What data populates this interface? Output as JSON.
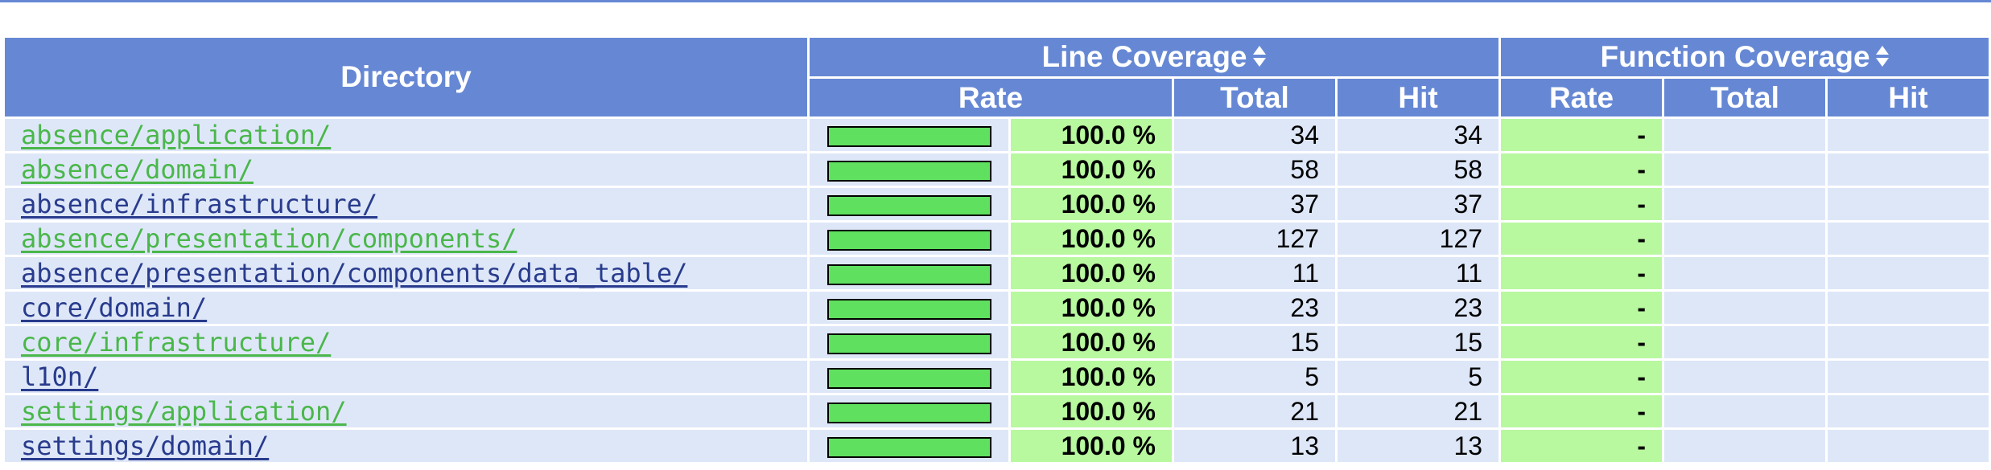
{
  "header": {
    "directory": "Directory",
    "line_coverage": "Line Coverage",
    "function_coverage": "Function Coverage",
    "rate": "Rate",
    "total": "Total",
    "hit": "Hit"
  },
  "colors": {
    "header_bg": "#6688d4",
    "row_bg": "#dee7f8",
    "pct_bg": "#b8f89f",
    "bar_fill": "#5fe05f",
    "link_green": "#4ab74a",
    "link_blue": "#283b8d"
  },
  "rows": [
    {
      "dir": "absence/application/",
      "link_color": "green",
      "coverage_fraction": 1.0,
      "rate": "100.0 %",
      "total": "34",
      "hit": "34",
      "func_rate": "-"
    },
    {
      "dir": "absence/domain/",
      "link_color": "green",
      "coverage_fraction": 1.0,
      "rate": "100.0 %",
      "total": "58",
      "hit": "58",
      "func_rate": "-"
    },
    {
      "dir": "absence/infrastructure/",
      "link_color": "blue",
      "coverage_fraction": 1.0,
      "rate": "100.0 %",
      "total": "37",
      "hit": "37",
      "func_rate": "-"
    },
    {
      "dir": "absence/presentation/components/",
      "link_color": "green",
      "coverage_fraction": 1.0,
      "rate": "100.0 %",
      "total": "127",
      "hit": "127",
      "func_rate": "-"
    },
    {
      "dir": "absence/presentation/components/data_table/",
      "link_color": "blue",
      "coverage_fraction": 1.0,
      "rate": "100.0 %",
      "total": "11",
      "hit": "11",
      "func_rate": "-"
    },
    {
      "dir": "core/domain/",
      "link_color": "blue",
      "coverage_fraction": 1.0,
      "rate": "100.0 %",
      "total": "23",
      "hit": "23",
      "func_rate": "-"
    },
    {
      "dir": "core/infrastructure/",
      "link_color": "green",
      "coverage_fraction": 1.0,
      "rate": "100.0 %",
      "total": "15",
      "hit": "15",
      "func_rate": "-"
    },
    {
      "dir": "l10n/",
      "link_color": "blue",
      "coverage_fraction": 1.0,
      "rate": "100.0 %",
      "total": "5",
      "hit": "5",
      "func_rate": "-"
    },
    {
      "dir": "settings/application/",
      "link_color": "green",
      "coverage_fraction": 1.0,
      "rate": "100.0 %",
      "total": "21",
      "hit": "21",
      "func_rate": "-"
    },
    {
      "dir": "settings/domain/",
      "link_color": "blue",
      "coverage_fraction": 1.0,
      "rate": "100.0 %",
      "total": "13",
      "hit": "13",
      "func_rate": "-"
    }
  ]
}
